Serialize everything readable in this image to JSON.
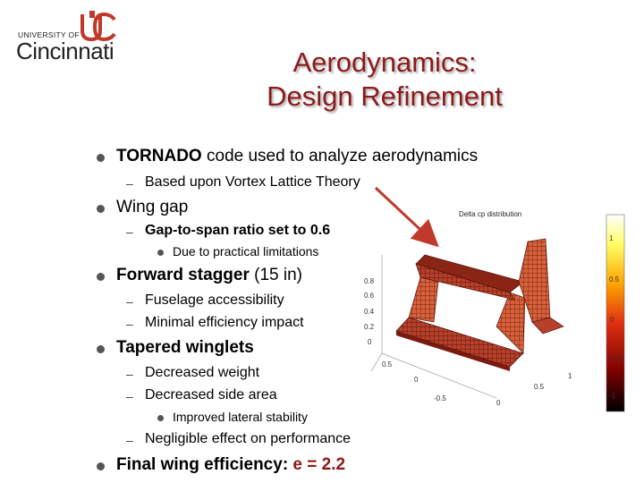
{
  "logo": {
    "line1": "UNIVERSITY OF",
    "line2": "Cincinnati"
  },
  "title": {
    "line1": "Aerodynamics:",
    "line2": "Design Refinement"
  },
  "bullets": {
    "b1": {
      "bold": "TORNADO",
      "rest": " code used to analyze aerodynamics"
    },
    "b1_1": "Based upon Vortex Lattice Theory",
    "b2": "Wing gap",
    "b2_1": "Gap-to-span ratio set to 0.6",
    "b2_1_1": "Due to practical limitations",
    "b3": {
      "bold": "Forward stagger",
      "rest": " (15 in)"
    },
    "b3_1": "Fuselage accessibility",
    "b3_2": "Minimal efficiency impact",
    "b4": "Tapered winglets",
    "b4_1": "Decreased weight",
    "b4_2": "Decreased side area",
    "b4_2_1": "Improved lateral stability",
    "b4_3": "Negligible effect on performance",
    "b5": {
      "label": "Final wing efficiency: ",
      "value": "e = 2.2"
    }
  },
  "plot": {
    "title": "Delta cp distribution",
    "colorbar_ticks": [
      "1",
      "0.5",
      "0",
      "-0.5",
      "-1"
    ],
    "z_ticks": [
      "0.8",
      "0.6",
      "0.4",
      "0.2",
      "0"
    ],
    "x_ticks": [
      "0.5",
      "0",
      "-0.5"
    ],
    "y_ticks": [
      "1",
      "0.5",
      "0"
    ],
    "accent": "#c0392b"
  }
}
